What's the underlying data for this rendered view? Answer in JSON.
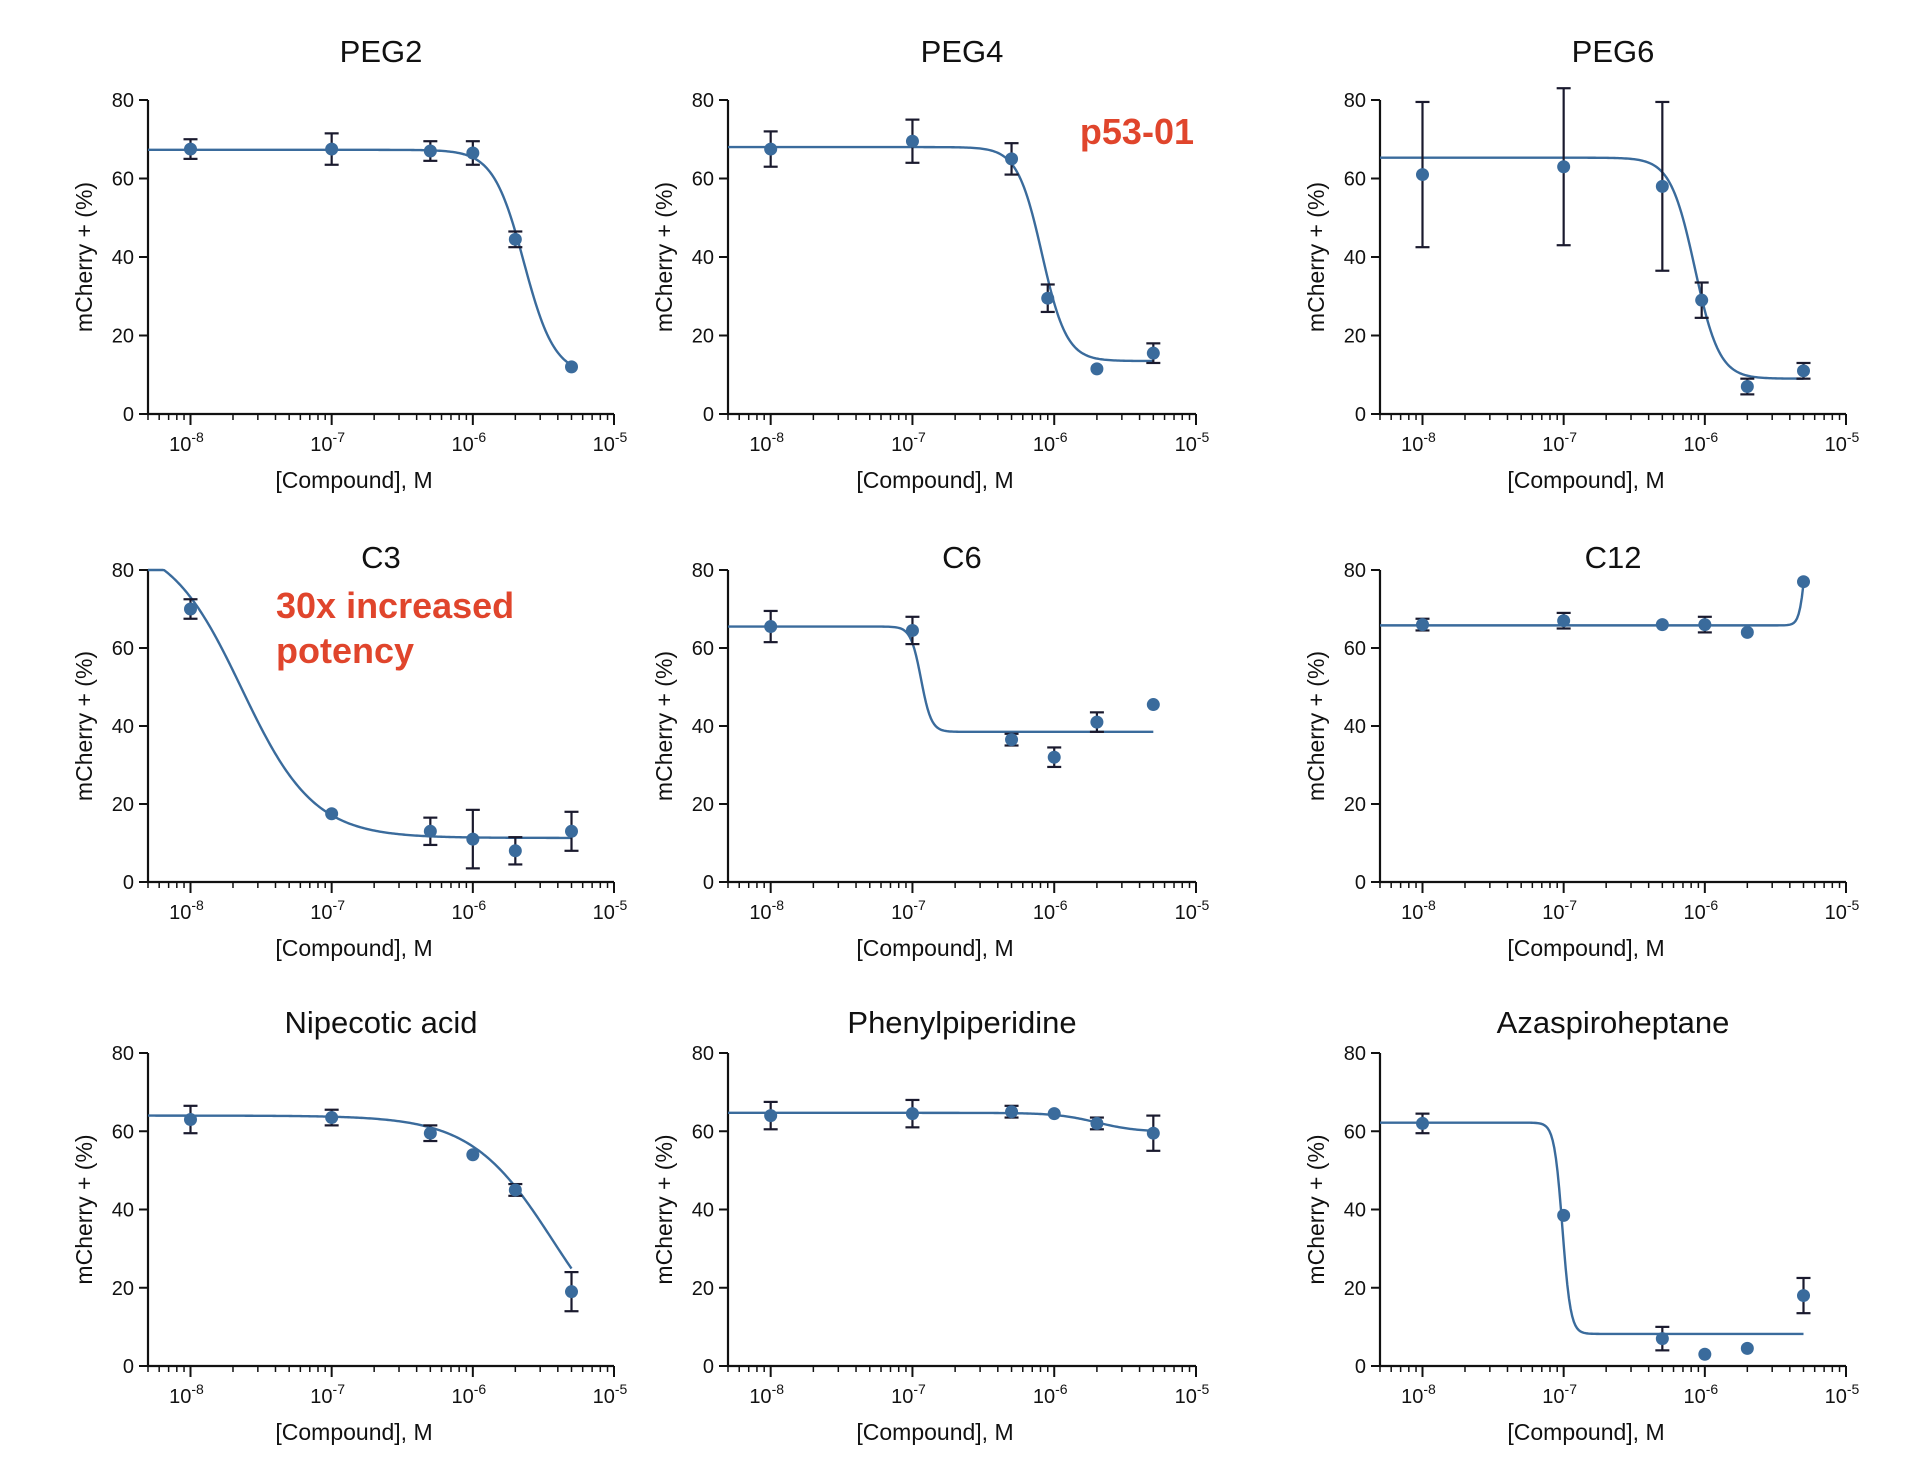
{
  "colors": {
    "curve": "#3a6b9c",
    "point": "#3a6b9c",
    "error_bar": "#1a1a2e",
    "axis": "#111111",
    "annotation": "#e0452c"
  },
  "chart_data": [
    {
      "type": "scatter",
      "title": "PEG2",
      "xlabel": "[Compound], M",
      "ylabel": "mCherry + (%)",
      "xscale": "log",
      "xlim": [
        5e-09,
        1e-05
      ],
      "ylim": [
        0,
        80
      ],
      "yticks": [
        0,
        20,
        40,
        60,
        80
      ],
      "xticks": [
        1e-08,
        1e-07,
        1e-06,
        1e-05
      ],
      "xtick_labels": [
        {
          "base": "10",
          "exp": "-8"
        },
        {
          "base": "10",
          "exp": "-7"
        },
        {
          "base": "10",
          "exp": "-6"
        },
        {
          "base": "10",
          "exp": "-5"
        }
      ],
      "grid": false,
      "points": [
        {
          "x": 1e-08,
          "y": 67.5,
          "err": 2.5
        },
        {
          "x": 1e-07,
          "y": 67.5,
          "err": 4
        },
        {
          "x": 5e-07,
          "y": 67,
          "err": 2.5
        },
        {
          "x": 1e-06,
          "y": 66.5,
          "err": 3
        },
        {
          "x": 2e-06,
          "y": 44.5,
          "err": 2
        },
        {
          "x": 5e-06,
          "y": 12,
          "err": 0
        }
      ],
      "fit": {
        "top": 67.3,
        "bottom": 10,
        "ec50": 2.3e-06,
        "hill": -4
      },
      "annotations": []
    },
    {
      "type": "scatter",
      "title": "PEG4",
      "xlabel": "[Compound], M",
      "ylabel": "mCherry + (%)",
      "xscale": "log",
      "xlim": [
        5e-09,
        1e-05
      ],
      "ylim": [
        0,
        80
      ],
      "yticks": [
        0,
        20,
        40,
        60,
        80
      ],
      "xticks": [
        1e-08,
        1e-07,
        1e-06,
        1e-05
      ],
      "xtick_labels": [
        {
          "base": "10",
          "exp": "-8"
        },
        {
          "base": "10",
          "exp": "-7"
        },
        {
          "base": "10",
          "exp": "-6"
        },
        {
          "base": "10",
          "exp": "-5"
        }
      ],
      "grid": false,
      "points": [
        {
          "x": 1e-08,
          "y": 67.5,
          "err": 4.5
        },
        {
          "x": 1e-07,
          "y": 69.5,
          "err": 5.5
        },
        {
          "x": 5e-07,
          "y": 65,
          "err": 4
        },
        {
          "x": 9e-07,
          "y": 29.5,
          "err": 3.5
        },
        {
          "x": 2e-06,
          "y": 11.5,
          "err": 0
        },
        {
          "x": 5e-06,
          "y": 15.5,
          "err": 2.5
        }
      ],
      "fit": {
        "top": 68,
        "bottom": 13.5,
        "ec50": 8.2e-07,
        "hill": -5
      },
      "annotations": [
        {
          "text": "p53-01",
          "at": "top-right"
        }
      ]
    },
    {
      "type": "scatter",
      "title": "PEG6",
      "xlabel": "[Compound], M",
      "ylabel": "mCherry + (%)",
      "xscale": "log",
      "xlim": [
        5e-09,
        1e-05
      ],
      "ylim": [
        0,
        80
      ],
      "yticks": [
        0,
        20,
        40,
        60,
        80
      ],
      "xticks": [
        1e-08,
        1e-07,
        1e-06,
        1e-05
      ],
      "xtick_labels": [
        {
          "base": "10",
          "exp": "-8"
        },
        {
          "base": "10",
          "exp": "-7"
        },
        {
          "base": "10",
          "exp": "-6"
        },
        {
          "base": "10",
          "exp": "-5"
        }
      ],
      "grid": false,
      "points": [
        {
          "x": 1e-08,
          "y": 61,
          "err": 18.5
        },
        {
          "x": 1e-07,
          "y": 63,
          "err": 20
        },
        {
          "x": 5e-07,
          "y": 58,
          "err": 21.5
        },
        {
          "x": 9.5e-07,
          "y": 29,
          "err": 4.5
        },
        {
          "x": 2e-06,
          "y": 7,
          "err": 2
        },
        {
          "x": 5e-06,
          "y": 11,
          "err": 2
        }
      ],
      "fit": {
        "top": 65.3,
        "bottom": 9,
        "ec50": 8.5e-07,
        "hill": -5
      },
      "annotations": []
    },
    {
      "type": "scatter",
      "title": "C3",
      "xlabel": "[Compound], M",
      "ylabel": "mCherry + (%)",
      "xscale": "log",
      "xlim": [
        5e-09,
        1e-05
      ],
      "ylim": [
        0,
        80
      ],
      "yticks": [
        0,
        20,
        40,
        60,
        80
      ],
      "xticks": [
        1e-08,
        1e-07,
        1e-06,
        1e-05
      ],
      "xtick_labels": [
        {
          "base": "10",
          "exp": "-8"
        },
        {
          "base": "10",
          "exp": "-7"
        },
        {
          "base": "10",
          "exp": "-6"
        },
        {
          "base": "10",
          "exp": "-5"
        }
      ],
      "grid": false,
      "points": [
        {
          "x": 1e-08,
          "y": 70,
          "err": 2.5
        },
        {
          "x": 1e-07,
          "y": 17.5,
          "err": 0
        },
        {
          "x": 5e-07,
          "y": 13,
          "err": 3.5
        },
        {
          "x": 1e-06,
          "y": 11,
          "err": 7.5
        },
        {
          "x": 2e-06,
          "y": 8,
          "err": 3.5
        },
        {
          "x": 5e-06,
          "y": 13,
          "err": 5
        }
      ],
      "fit": {
        "top": 88,
        "bottom": 11.3,
        "ec50": 2.3e-08,
        "hill": -1.7
      },
      "annotations": [
        {
          "text": "30x increased",
          "at": "upper-middle"
        },
        {
          "text": "potency",
          "at": "upper-middle"
        }
      ]
    },
    {
      "type": "scatter",
      "title": "C6",
      "xlabel": "[Compound], M",
      "ylabel": "mCherry + (%)",
      "xscale": "log",
      "xlim": [
        5e-09,
        1e-05
      ],
      "ylim": [
        0,
        80
      ],
      "yticks": [
        0,
        20,
        40,
        60,
        80
      ],
      "xticks": [
        1e-08,
        1e-07,
        1e-06,
        1e-05
      ],
      "xtick_labels": [
        {
          "base": "10",
          "exp": "-8"
        },
        {
          "base": "10",
          "exp": "-7"
        },
        {
          "base": "10",
          "exp": "-6"
        },
        {
          "base": "10",
          "exp": "-5"
        }
      ],
      "grid": false,
      "points": [
        {
          "x": 1e-08,
          "y": 65.5,
          "err": 4
        },
        {
          "x": 1e-07,
          "y": 64.5,
          "err": 3.5
        },
        {
          "x": 5e-07,
          "y": 36.5,
          "err": 1.5
        },
        {
          "x": 1e-06,
          "y": 32,
          "err": 2.5
        },
        {
          "x": 2e-06,
          "y": 41,
          "err": 2.5
        },
        {
          "x": 5e-06,
          "y": 45.5,
          "err": 0
        }
      ],
      "fit": {
        "top": 65.5,
        "bottom": 38.5,
        "ec50": 1.15e-07,
        "hill": -12,
        "x_end": 5e-06
      },
      "annotations": []
    },
    {
      "type": "scatter",
      "title": "C12",
      "xlabel": "[Compound], M",
      "ylabel": "mCherry + (%)",
      "xscale": "log",
      "xlim": [
        5e-09,
        1e-05
      ],
      "ylim": [
        0,
        80
      ],
      "yticks": [
        0,
        20,
        40,
        60,
        80
      ],
      "xticks": [
        1e-08,
        1e-07,
        1e-06,
        1e-05
      ],
      "xtick_labels": [
        {
          "base": "10",
          "exp": "-8"
        },
        {
          "base": "10",
          "exp": "-7"
        },
        {
          "base": "10",
          "exp": "-6"
        },
        {
          "base": "10",
          "exp": "-5"
        }
      ],
      "grid": false,
      "points": [
        {
          "x": 1e-08,
          "y": 66,
          "err": 1.5
        },
        {
          "x": 1e-07,
          "y": 67,
          "err": 2
        },
        {
          "x": 5e-07,
          "y": 66,
          "err": 0
        },
        {
          "x": 1e-06,
          "y": 66,
          "err": 2
        },
        {
          "x": 2e-06,
          "y": 64,
          "err": 0
        },
        {
          "x": 5e-06,
          "y": 77,
          "err": 0
        }
      ],
      "fit": {
        "top": 100,
        "bottom": 65.8,
        "ec50": 5.2e-06,
        "hill": 20,
        "x_end": 5e-06
      },
      "annotations": []
    },
    {
      "type": "scatter",
      "title": "Nipecotic acid",
      "xlabel": "[Compound], M",
      "ylabel": "mCherry + (%)",
      "xscale": "log",
      "xlim": [
        5e-09,
        1e-05
      ],
      "ylim": [
        0,
        80
      ],
      "yticks": [
        0,
        20,
        40,
        60,
        80
      ],
      "xticks": [
        1e-08,
        1e-07,
        1e-06,
        1e-05
      ],
      "xtick_labels": [
        {
          "base": "10",
          "exp": "-8"
        },
        {
          "base": "10",
          "exp": "-7"
        },
        {
          "base": "10",
          "exp": "-6"
        },
        {
          "base": "10",
          "exp": "-5"
        }
      ],
      "grid": false,
      "points": [
        {
          "x": 1e-08,
          "y": 63,
          "err": 3.5
        },
        {
          "x": 1e-07,
          "y": 63.5,
          "err": 2
        },
        {
          "x": 5e-07,
          "y": 59.5,
          "err": 2
        },
        {
          "x": 1e-06,
          "y": 54,
          "err": 0
        },
        {
          "x": 2e-06,
          "y": 45,
          "err": 1.5
        },
        {
          "x": 5e-06,
          "y": 19,
          "err": 5
        }
      ],
      "fit": {
        "top": 64,
        "bottom": 0,
        "ec50": 3.7e-06,
        "hill": -1.5,
        "x_end": 5e-06
      },
      "annotations": []
    },
    {
      "type": "scatter",
      "title": "Phenylpiperidine",
      "xlabel": "[Compound], M",
      "ylabel": "mCherry + (%)",
      "xscale": "log",
      "xlim": [
        5e-09,
        1e-05
      ],
      "ylim": [
        0,
        80
      ],
      "yticks": [
        0,
        20,
        40,
        60,
        80
      ],
      "xticks": [
        1e-08,
        1e-07,
        1e-06,
        1e-05
      ],
      "xtick_labels": [
        {
          "base": "10",
          "exp": "-8"
        },
        {
          "base": "10",
          "exp": "-7"
        },
        {
          "base": "10",
          "exp": "-6"
        },
        {
          "base": "10",
          "exp": "-5"
        }
      ],
      "grid": false,
      "points": [
        {
          "x": 1e-08,
          "y": 64,
          "err": 3.5
        },
        {
          "x": 1e-07,
          "y": 64.5,
          "err": 3.5
        },
        {
          "x": 5e-07,
          "y": 65,
          "err": 1.5
        },
        {
          "x": 1e-06,
          "y": 64.5,
          "err": 0
        },
        {
          "x": 2e-06,
          "y": 62,
          "err": 1.5
        },
        {
          "x": 5e-06,
          "y": 59.5,
          "err": 4.5
        }
      ],
      "fit": {
        "top": 64.7,
        "bottom": 59.8,
        "ec50": 2e-06,
        "hill": -3,
        "x_end": 5e-06
      },
      "annotations": []
    },
    {
      "type": "scatter",
      "title": "Azaspiroheptane",
      "xlabel": "[Compound], M",
      "ylabel": "mCherry + (%)",
      "xscale": "log",
      "xlim": [
        5e-09,
        1e-05
      ],
      "ylim": [
        0,
        80
      ],
      "yticks": [
        0,
        20,
        40,
        60,
        80
      ],
      "xticks": [
        1e-08,
        1e-07,
        1e-06,
        1e-05
      ],
      "xtick_labels": [
        {
          "base": "10",
          "exp": "-8"
        },
        {
          "base": "10",
          "exp": "-7"
        },
        {
          "base": "10",
          "exp": "-6"
        },
        {
          "base": "10",
          "exp": "-5"
        }
      ],
      "grid": false,
      "points": [
        {
          "x": 1e-08,
          "y": 62,
          "err": 2.5
        },
        {
          "x": 1e-07,
          "y": 38.5,
          "err": 0
        },
        {
          "x": 5e-07,
          "y": 7,
          "err": 3
        },
        {
          "x": 1e-06,
          "y": 3,
          "err": 0
        },
        {
          "x": 2e-06,
          "y": 4.5,
          "err": 0
        },
        {
          "x": 5e-06,
          "y": 18,
          "err": 4.5
        }
      ],
      "fit": {
        "top": 62.2,
        "bottom": 8.2,
        "ec50": 9.8e-08,
        "hill": -15,
        "x_end": 5e-06
      },
      "annotations": []
    }
  ]
}
